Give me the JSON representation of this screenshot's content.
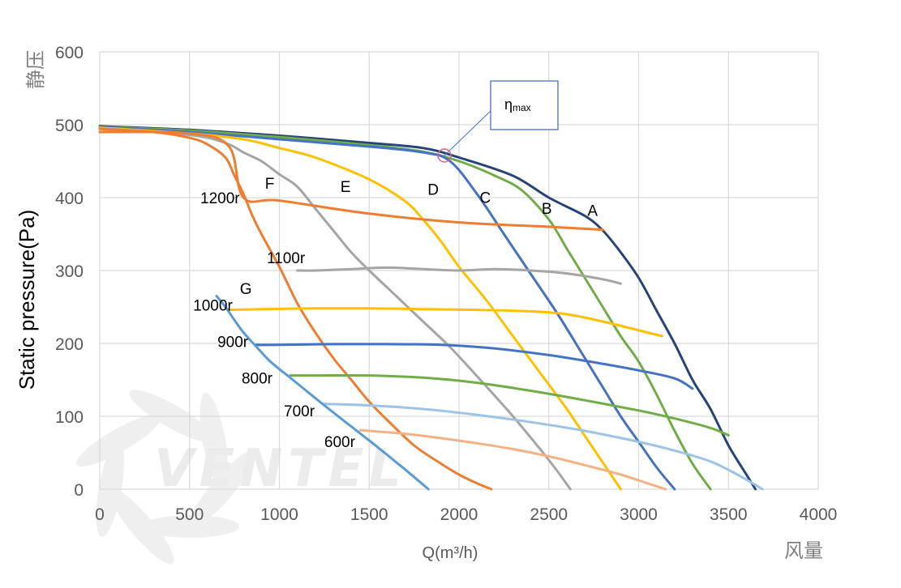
{
  "chart_data": {
    "type": "line",
    "ylabel": "Static pressure(Pa)",
    "ylabel_cn": "静压",
    "xlabel": "Q(m³/h)",
    "xlabel_cn": "风量",
    "xlim": [
      0,
      4000
    ],
    "ylim": [
      0,
      600
    ],
    "x_ticks": [
      "0",
      "500",
      "1000",
      "1500",
      "2000",
      "2500",
      "3000",
      "3500",
      "4000"
    ],
    "y_ticks": [
      "0",
      "100",
      "200",
      "300",
      "400",
      "500",
      "600"
    ],
    "grid": true,
    "watermark": "VENTEL",
    "efficiency_label": {
      "symbol": "η",
      "sub": "max",
      "point": [
        1920,
        458
      ]
    },
    "series": [
      {
        "name": "A",
        "color": "#264478",
        "x": [
          0,
          500,
          1000,
          1500,
          1800,
          2000,
          2300,
          2500,
          2700,
          2800,
          2900,
          3000,
          3100,
          3200,
          3300,
          3400,
          3500,
          3600,
          3650
        ],
        "y": [
          498,
          493,
          485,
          475,
          468,
          455,
          430,
          400,
          375,
          355,
          325,
          290,
          245,
          200,
          150,
          110,
          60,
          20,
          0
        ]
      },
      {
        "name": "B",
        "color": "#70ad47",
        "x": [
          0,
          500,
          1000,
          1500,
          1800,
          2000,
          2200,
          2350,
          2500,
          2600,
          2700,
          2800,
          2900,
          3000,
          3100,
          3200,
          3300,
          3400
        ],
        "y": [
          497,
          492,
          483,
          472,
          463,
          450,
          430,
          410,
          370,
          330,
          290,
          250,
          210,
          175,
          130,
          80,
          35,
          0
        ]
      },
      {
        "name": "C",
        "color": "#4472c4",
        "x": [
          0,
          500,
          1000,
          1500,
          1800,
          1950,
          2100,
          2250,
          2400,
          2550,
          2700,
          2800,
          2900,
          3000,
          3100,
          3200
        ],
        "y": [
          497,
          490,
          480,
          470,
          462,
          450,
          405,
          350,
          295,
          240,
          180,
          140,
          100,
          65,
          30,
          0
        ]
      },
      {
        "name": "D",
        "color": "#ffc000",
        "x": [
          0,
          500,
          800,
          1000,
          1200,
          1500,
          1700,
          1800,
          1900,
          2000,
          2150,
          2300,
          2450,
          2600,
          2750,
          2900
        ],
        "y": [
          496,
          488,
          480,
          468,
          455,
          425,
          395,
          370,
          340,
          305,
          260,
          210,
          160,
          110,
          55,
          0
        ]
      },
      {
        "name": "E",
        "color": "#a5a5a5",
        "x": [
          0,
          500,
          700,
          800,
          900,
          1000,
          1100,
          1200,
          1300,
          1400,
          1500,
          1650,
          1800,
          1950,
          2100,
          2300,
          2500,
          2620
        ],
        "y": [
          495,
          486,
          475,
          462,
          450,
          432,
          415,
          385,
          355,
          325,
          300,
          265,
          230,
          195,
          155,
          100,
          40,
          0
        ]
      },
      {
        "name": "F",
        "color": "#ed7d31",
        "x": [
          0,
          300,
          500,
          600,
          700,
          750,
          800,
          850,
          900,
          1000,
          1100,
          1200,
          1300,
          1400,
          1500,
          1600,
          1750,
          1900,
          2000,
          2100,
          2180
        ],
        "y": [
          494,
          490,
          482,
          473,
          455,
          430,
          405,
          375,
          350,
          305,
          255,
          215,
          180,
          150,
          120,
          95,
          60,
          35,
          20,
          8,
          0
        ]
      },
      {
        "name": "1200r",
        "color": "#ed7d31",
        "x": [
          0,
          500,
          720,
          800,
          1000,
          1500,
          2000,
          2500,
          2800
        ],
        "y": [
          490,
          488,
          470,
          400,
          396,
          378,
          366,
          360,
          356
        ]
      },
      {
        "name": "1100r",
        "color": "#a5a5a5",
        "x": [
          1100,
          1200,
          1400,
          1600,
          1800,
          2000,
          2200,
          2400,
          2600,
          2800,
          2900
        ],
        "y": [
          300,
          300,
          302,
          304,
          302,
          300,
          302,
          300,
          296,
          288,
          282
        ]
      },
      {
        "name": "1000r",
        "color": "#ffc000",
        "x": [
          710,
          900,
          1200,
          1500,
          1800,
          2100,
          2400,
          2600,
          2800,
          3000,
          3130
        ],
        "y": [
          246,
          247,
          248,
          248,
          247,
          246,
          244,
          240,
          230,
          218,
          210
        ]
      },
      {
        "name": "900r",
        "color": "#4472c4",
        "x": [
          870,
          1000,
          1300,
          1600,
          1900,
          2200,
          2500,
          2800,
          3000,
          3200,
          3300
        ],
        "y": [
          198,
          198,
          199,
          199,
          198,
          193,
          184,
          172,
          163,
          152,
          138
        ]
      },
      {
        "name": "800r",
        "color": "#70ad47",
        "x": [
          1060,
          1200,
          1500,
          1800,
          2100,
          2400,
          2700,
          3000,
          3200,
          3400,
          3500
        ],
        "y": [
          156,
          156,
          156,
          153,
          146,
          135,
          122,
          108,
          97,
          84,
          74
        ]
      },
      {
        "name": "700r",
        "color": "#9dc3e6",
        "x": [
          1250,
          1500,
          1800,
          2100,
          2400,
          2700,
          3000,
          3200,
          3400,
          3550,
          3690
        ],
        "y": [
          117,
          115,
          110,
          102,
          92,
          80,
          65,
          53,
          38,
          20,
          0
        ]
      },
      {
        "name": "600r",
        "color": "#f4b183",
        "x": [
          1450,
          1700,
          1900,
          2100,
          2300,
          2500,
          2700,
          2900,
          3050,
          3150
        ],
        "y": [
          81,
          76,
          70,
          63,
          55,
          45,
          33,
          20,
          8,
          0
        ]
      },
      {
        "name": "G",
        "color": "#5b9bd5",
        "x": [
          650,
          700,
          750,
          800,
          870,
          950,
          1050,
          1150,
          1250,
          1400,
          1550,
          1700,
          1830
        ],
        "y": [
          265,
          250,
          232,
          215,
          196,
          175,
          155,
          135,
          115,
          86,
          57,
          27,
          0
        ]
      }
    ],
    "labels": [
      {
        "text": "A",
        "x": 2715,
        "y": 375
      },
      {
        "text": "B",
        "x": 2460,
        "y": 378
      },
      {
        "text": "C",
        "x": 2115,
        "y": 393
      },
      {
        "text": "D",
        "x": 1825,
        "y": 404
      },
      {
        "text": "E",
        "x": 1340,
        "y": 408
      },
      {
        "text": "F",
        "x": 920,
        "y": 412
      },
      {
        "text": "G",
        "x": 780,
        "y": 268
      },
      {
        "text": "1200r",
        "x": 560,
        "y": 392
      },
      {
        "text": "1100r",
        "x": 930,
        "y": 310
      },
      {
        "text": "1000r",
        "x": 520,
        "y": 245
      },
      {
        "text": "900r",
        "x": 655,
        "y": 195
      },
      {
        "text": "800r",
        "x": 790,
        "y": 145
      },
      {
        "text": "700r",
        "x": 1025,
        "y": 100
      },
      {
        "text": "600r",
        "x": 1250,
        "y": 58
      }
    ]
  }
}
